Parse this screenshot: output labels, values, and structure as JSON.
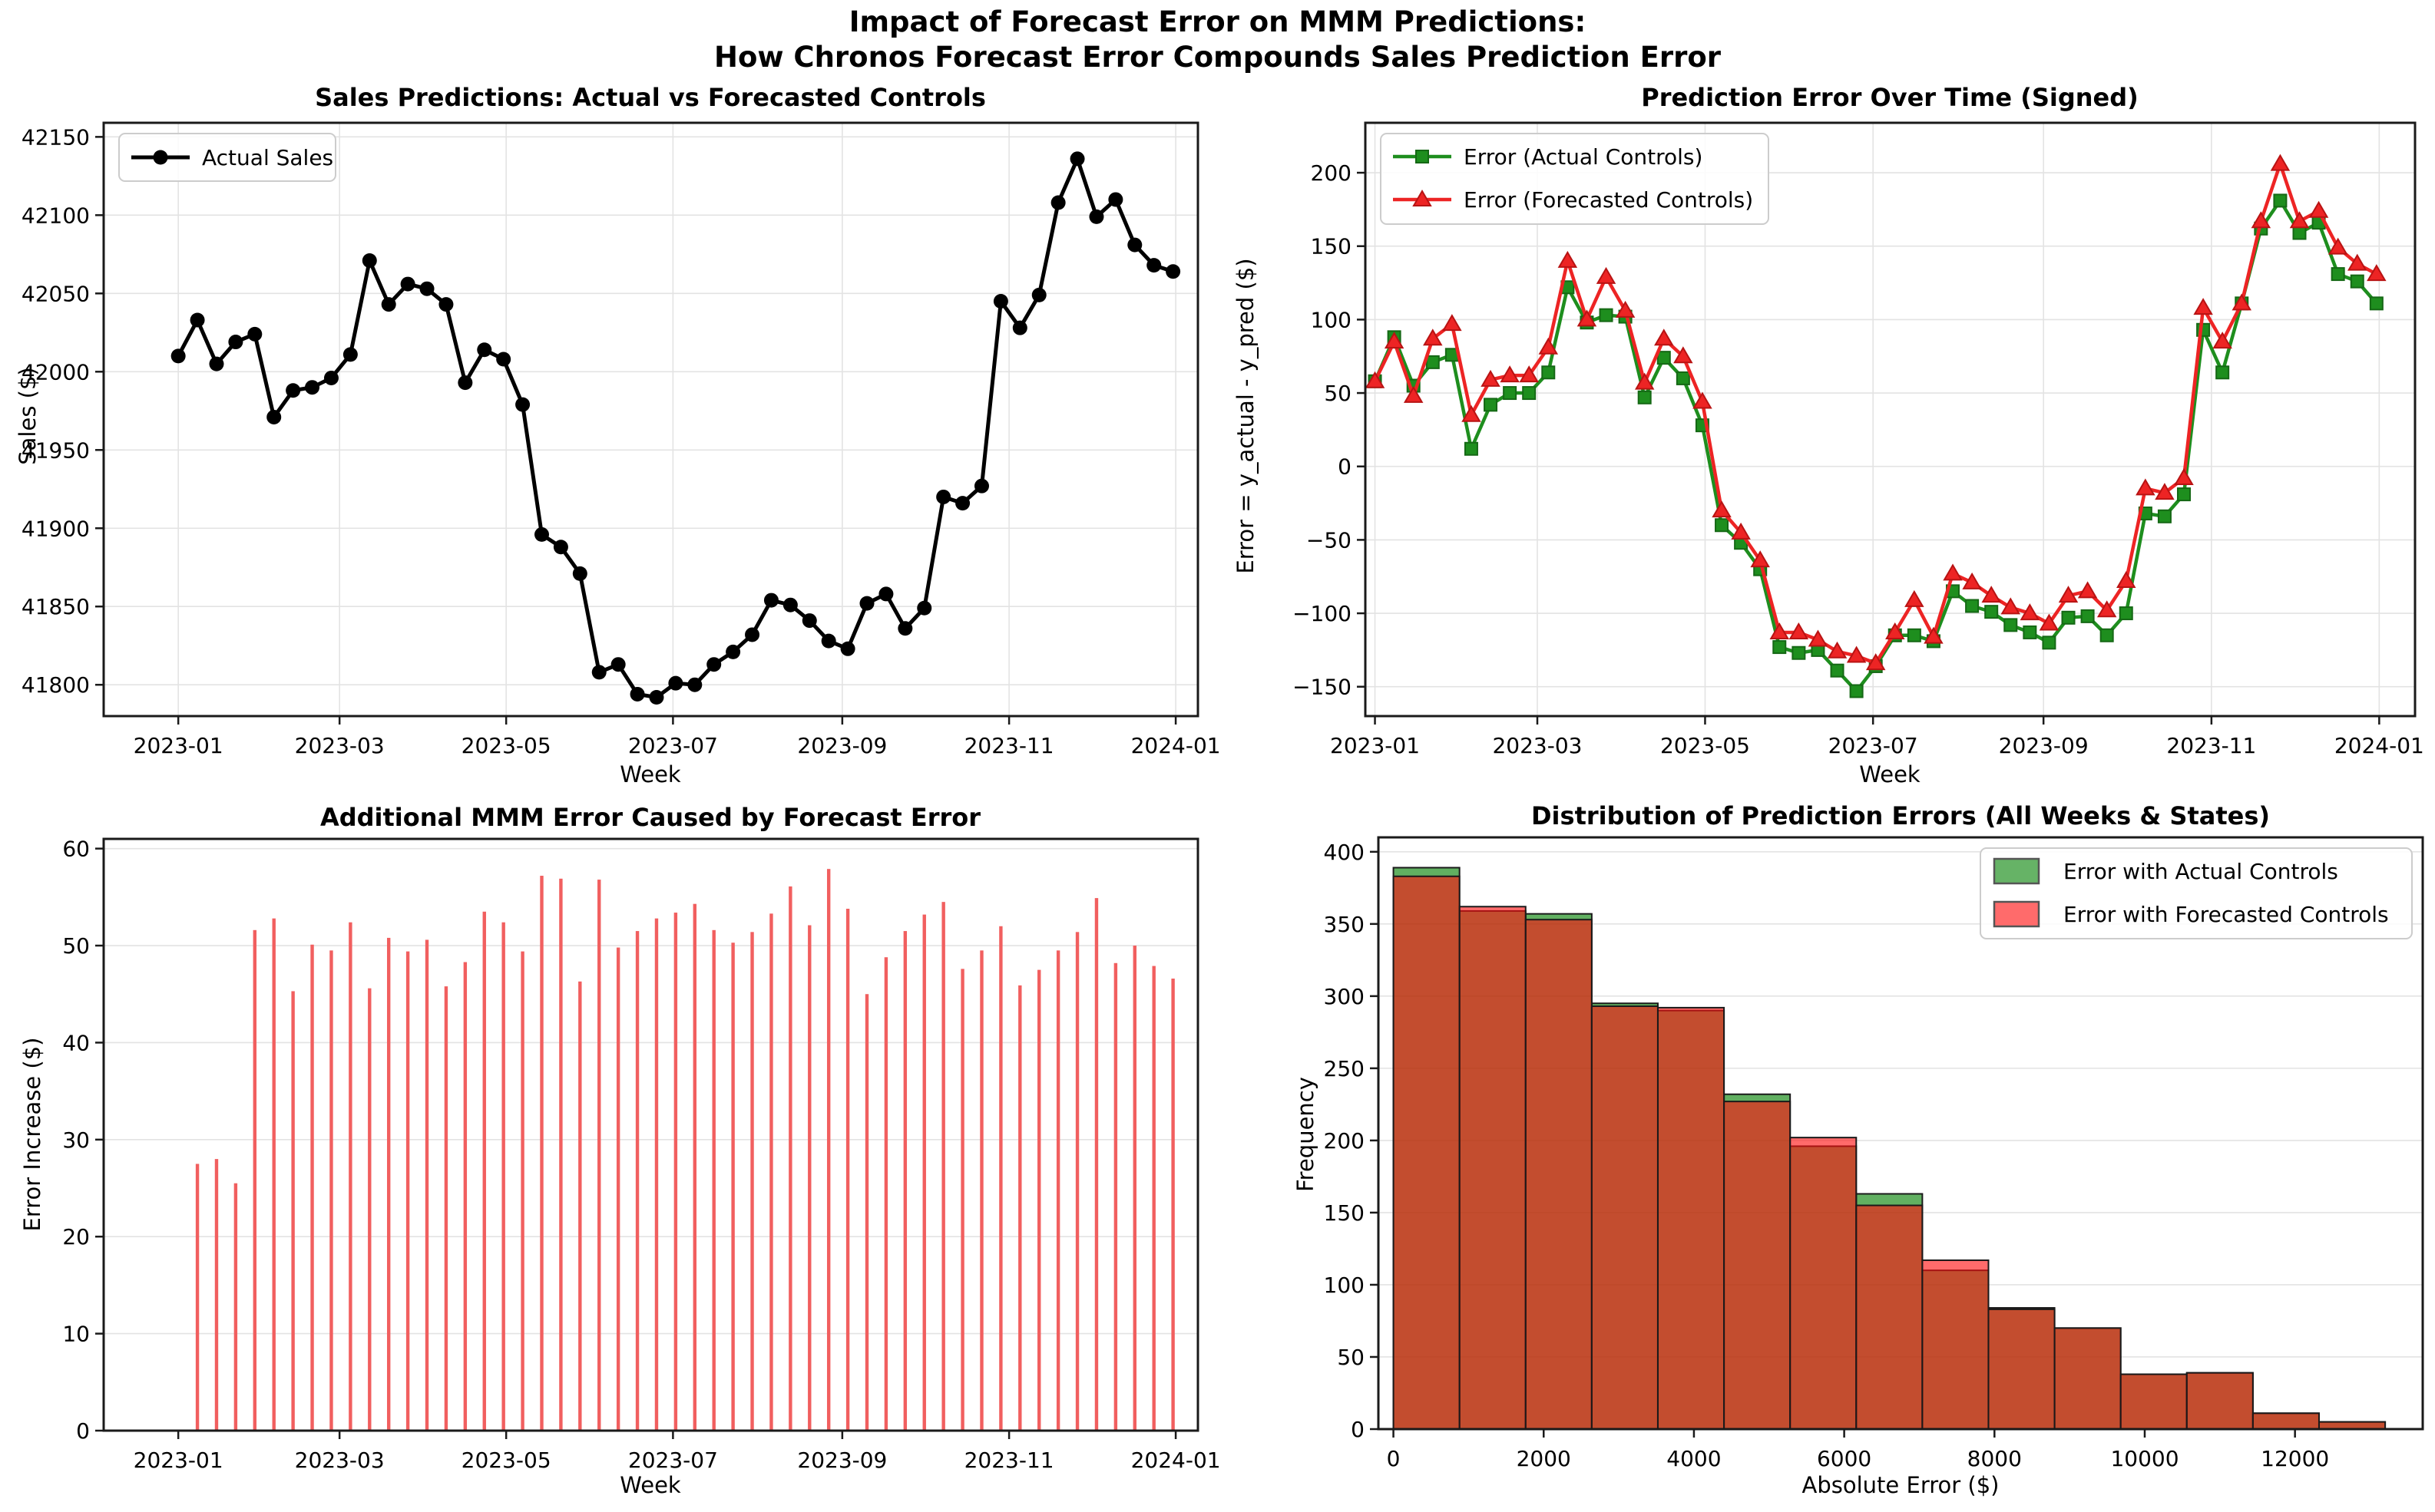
{
  "figure": {
    "title_line1": "Impact of Forecast Error on MMM Predictions:",
    "title_line2": "How Chronos Forecast Error Compounds Sales Prediction Error",
    "background": "#ffffff"
  },
  "colors": {
    "sales_line": "#000000",
    "error_actual_line": "#1e8e1e",
    "error_actual_edge": "#156815",
    "error_forecasted_line": "#ed2424",
    "error_forecasted_edge": "#b81313",
    "bar_increase": "#f15f5f",
    "hist_actual_fill": "rgba(0,128,0,0.62)",
    "hist_forecasted_fill": "rgba(255,16,16,0.62)",
    "hist_edge": "#1a1a1a",
    "legend_actual_patch": "#66b366",
    "legend_forecasted_patch": "#ff6b6b",
    "grid": "#e3e3e3",
    "spine": "#1a1a1a"
  },
  "week_tick_labels": [
    {
      "week": 0,
      "label": "2023-01"
    },
    {
      "week": 8.43,
      "label": "2023-03"
    },
    {
      "week": 17.14,
      "label": "2023-05"
    },
    {
      "week": 25.86,
      "label": "2023-07"
    },
    {
      "week": 34.71,
      "label": "2023-09"
    },
    {
      "week": 43.43,
      "label": "2023-11"
    },
    {
      "week": 52.14,
      "label": "2024-01"
    }
  ],
  "chart_data": [
    {
      "id": "sales",
      "type": "line",
      "title": "Sales Predictions: Actual vs Forecasted Controls",
      "xlabel": "Week",
      "ylabel": "Sales ($)",
      "x_start": "2023-01-01",
      "x_freq": "weekly",
      "ylim": [
        41780,
        42159
      ],
      "y_ticks": [
        41800,
        41850,
        41900,
        41950,
        42000,
        42050,
        42100,
        42150
      ],
      "y_tick_labels": [
        "41800",
        "41850",
        "41900",
        "41950",
        "42000",
        "42050",
        "42100",
        "42150"
      ],
      "legend": {
        "position": "top-left",
        "entries": [
          {
            "type": "line-circle",
            "color": "#000000",
            "label": "Actual Sales"
          }
        ]
      },
      "series": [
        {
          "name": "Actual Sales",
          "marker": "circle",
          "values": [
            42010,
            42033,
            42005,
            42019,
            42024,
            41971,
            41988,
            41990,
            41996,
            42011,
            42071,
            42043,
            42056,
            42053,
            42043,
            41993,
            42014,
            42008,
            41979,
            41896,
            41888,
            41871,
            41808,
            41813,
            41794,
            41792,
            41801,
            41800,
            41813,
            41821,
            41832,
            41854,
            41851,
            41841,
            41828,
            41823,
            41852,
            41858,
            41836,
            41849,
            41920,
            41916,
            41927,
            42045,
            42028,
            42049,
            42108,
            42136,
            42099,
            42110,
            42081,
            42068,
            42064
          ]
        }
      ]
    },
    {
      "id": "error_time",
      "type": "line",
      "title": "Prediction Error Over Time (Signed)",
      "xlabel": "Week",
      "ylabel": "Error = y_actual - y_pred ($)",
      "x_start": "2023-01-01",
      "x_freq": "weekly",
      "ylim": [
        -170,
        234
      ],
      "y_ticks": [
        -150,
        -100,
        -50,
        0,
        50,
        100,
        150,
        200
      ],
      "y_tick_labels": [
        "−150",
        "−100",
        "−50",
        "0",
        "50",
        "100",
        "150",
        "200"
      ],
      "legend": {
        "position": "top-left",
        "entries": [
          {
            "type": "line-square",
            "color": "#1e8e1e",
            "label": "Error (Actual Controls)"
          },
          {
            "type": "line-triangle",
            "color": "#ed2424",
            "label": "Error (Forecasted Controls)"
          }
        ]
      },
      "series": [
        {
          "name": "Error (Actual Controls)",
          "marker": "square",
          "values": [
            58,
            88,
            55,
            71,
            76,
            12,
            42,
            50,
            50,
            64,
            122,
            98,
            103,
            102,
            47,
            74,
            60,
            28,
            -40,
            -52,
            -70,
            -123,
            -127,
            -125,
            -139,
            -153,
            -136,
            -115,
            -115,
            -119,
            -85,
            -95,
            -99,
            -108,
            -113,
            -120,
            -103,
            -102,
            -115,
            -100,
            -32,
            -34,
            -19,
            93,
            64,
            111,
            162,
            181,
            159,
            166,
            131,
            126,
            111
          ]
        },
        {
          "name": "Error (Forecasted Controls)",
          "marker": "triangle",
          "values": [
            58,
            85,
            48,
            87,
            97,
            35,
            59,
            62,
            62,
            81,
            140,
            100,
            129,
            106,
            57,
            87,
            75,
            44,
            -30,
            -45,
            -64,
            -113,
            -113,
            -118,
            -126,
            -129,
            -134,
            -113,
            -91,
            -116,
            -73,
            -79,
            -88,
            -96,
            -100,
            -107,
            -88,
            -85,
            -98,
            -78,
            -15,
            -18,
            -8,
            108,
            85,
            111,
            167,
            206,
            167,
            174,
            149,
            138,
            131
          ]
        }
      ]
    },
    {
      "id": "add_error",
      "type": "bar",
      "title": "Additional MMM Error Caused by Forecast Error",
      "xlabel": "Week",
      "ylabel": "Error Increase ($)",
      "x_start_week_index": 1,
      "ylim": [
        0,
        61
      ],
      "y_ticks": [
        0,
        10,
        20,
        30,
        40,
        50,
        60
      ],
      "y_tick_labels": [
        "0",
        "10",
        "20",
        "30",
        "40",
        "50",
        "60"
      ],
      "values": [
        27.5,
        28.0,
        25.5,
        51.6,
        52.8,
        45.3,
        50.1,
        49.5,
        52.4,
        45.6,
        50.8,
        49.4,
        50.6,
        45.8,
        48.3,
        53.5,
        52.4,
        49.4,
        57.2,
        56.9,
        46.3,
        56.8,
        49.8,
        51.5,
        52.8,
        53.4,
        54.3,
        51.6,
        50.3,
        51.4,
        53.3,
        56.1,
        52.1,
        57.9,
        53.8,
        45.0,
        48.8,
        51.5,
        53.2,
        54.5,
        47.6,
        49.5,
        52.0,
        45.9,
        47.5,
        49.5,
        51.4,
        54.9,
        48.2,
        50.0,
        47.9,
        46.6
      ]
    },
    {
      "id": "dist",
      "type": "histogram",
      "title": "Distribution of Prediction Errors (All Weeks & States)",
      "xlabel": "Absolute Error ($)",
      "ylabel": "Frequency",
      "ylim": [
        0,
        410
      ],
      "y_ticks": [
        0,
        50,
        100,
        150,
        200,
        250,
        300,
        350,
        400
      ],
      "y_tick_labels": [
        "0",
        "50",
        "100",
        "150",
        "200",
        "250",
        "300",
        "350",
        "400"
      ],
      "x_ticks": [
        0,
        2000,
        4000,
        6000,
        8000,
        10000,
        12000
      ],
      "x_tick_labels": [
        "0",
        "2000",
        "4000",
        "6000",
        "8000",
        "10000",
        "12000"
      ],
      "bin_edges": [
        0,
        880,
        1760,
        2640,
        3520,
        4400,
        5280,
        6160,
        7040,
        7920,
        8800,
        9680,
        10560,
        11440,
        12320,
        13200
      ],
      "legend": {
        "position": "top-right",
        "entries": [
          {
            "type": "patch",
            "color": "#66b366",
            "label": "Error with Actual Controls"
          },
          {
            "type": "patch",
            "color": "#ff6b6b",
            "label": "Error with Forecasted Controls"
          }
        ]
      },
      "series": [
        {
          "name": "Error with Actual Controls",
          "frequencies": [
            389,
            359,
            357,
            295,
            290,
            232,
            196,
            163,
            110,
            84,
            70,
            38,
            39,
            11,
            5
          ]
        },
        {
          "name": "Error with Forecasted Controls",
          "frequencies": [
            383,
            362,
            353,
            293,
            292,
            227,
            202,
            155,
            117,
            83,
            70,
            38,
            39,
            11,
            5
          ]
        }
      ]
    }
  ]
}
